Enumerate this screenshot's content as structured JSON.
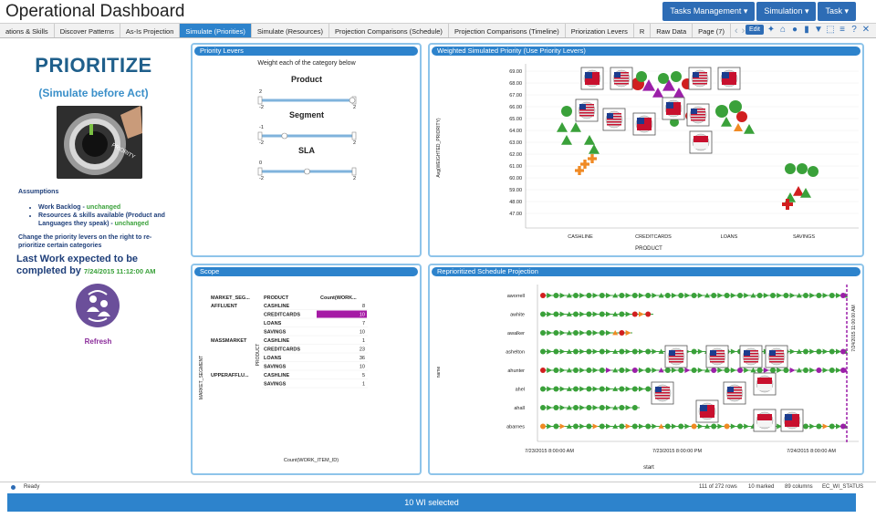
{
  "app": {
    "title": "Operational Dashboard"
  },
  "top_menu": [
    "Tasks Management ▾",
    "Simulation ▾",
    "Task ▾"
  ],
  "tabs": [
    "ations & Skills",
    "Discover Patterns",
    "As-Is Projection",
    "Simulate (Priorities)",
    "Simulate (Resources)",
    "Projection Comparisons (Schedule)",
    "Projection Comparisons (Timeline)",
    "Priorization Levers",
    "R",
    "Raw Data",
    "Page (7)"
  ],
  "active_tab": 3,
  "toolbar": {
    "edit_label": "Edit"
  },
  "left": {
    "title": "PRIORITIZE",
    "subtitle": "(Simulate before Act)",
    "knob_label": "PRIORITY",
    "assumptions_heading": "Assumptions",
    "assumption_1_label": "Work Backlog - ",
    "assumption_1_value": "unchanged",
    "assumption_2_label": "Resources & skills available (Product and Languages they speak) - ",
    "assumption_2_value": "unchanged",
    "change_note": "Change the priority levers on the right to re-prioritize certain categories",
    "last_work_label": "Last Work expected to be completed by",
    "last_work_date": "7/24/2015 11:12:00 AM",
    "refresh_label": "Refresh"
  },
  "levers": {
    "header": "Priority Levers",
    "instruction": "Weight each of the category below",
    "items": [
      {
        "name": "Product",
        "value": "2",
        "min": "-2",
        "max": "2",
        "level": 1.0
      },
      {
        "name": "Segment",
        "value": "-1",
        "min": "-2",
        "max": "2",
        "level": 0.25
      },
      {
        "name": "SLA",
        "value": "0",
        "min": "-2",
        "max": "2",
        "level": 0.5
      }
    ]
  },
  "scatter": {
    "header": "Weighted Simulated Priority (Use Priority Levers)",
    "ylabel": "Avg(WEIGHTED_PRIORITY)",
    "xlabel": "PRODUCT",
    "ticks_y": [
      "69.00",
      "68.00",
      "67.00",
      "66.00",
      "65.00",
      "64.00",
      "63.00",
      "62.00",
      "61.00",
      "60.00",
      "59.00",
      "48.00",
      "47.00"
    ],
    "categories": [
      "CASHLINE",
      "CREDITCARDS",
      "LOANS",
      "SAVINGS"
    ]
  },
  "scope": {
    "header": "Scope",
    "columns": [
      "MARKET_SEG...",
      "PRODUCT",
      "Count(WORK..."
    ],
    "row_axis_label": "MARKET_SEGMENT",
    "product_axis_label": "PRODUCT",
    "x_label": "Count(WORK_ITEM_ID)",
    "rows": [
      {
        "segment": "AFFLUENT",
        "product": "CASHLINE",
        "count": "8"
      },
      {
        "segment": "",
        "product": "CREDITCARDS",
        "count": "10"
      },
      {
        "segment": "",
        "product": "LOANS",
        "count": "7"
      },
      {
        "segment": "",
        "product": "SAVINGS",
        "count": "10"
      },
      {
        "segment": "MASSMARKET",
        "product": "CASHLINE",
        "count": "1"
      },
      {
        "segment": "",
        "product": "CREDITCARDS",
        "count": "23"
      },
      {
        "segment": "",
        "product": "LOANS",
        "count": "36"
      },
      {
        "segment": "",
        "product": "SAVINGS",
        "count": "10"
      },
      {
        "segment": "UPPERAFFLU...",
        "product": "CASHLINE",
        "count": "5"
      },
      {
        "segment": "",
        "product": "SAVINGS",
        "count": "1"
      }
    ],
    "highlighted_row": 1
  },
  "schedule": {
    "header": "Reprioritized Schedule Projection",
    "ylabel": "name",
    "xlabel": "start",
    "names": [
      "aworrell",
      "awhite",
      "awalker",
      "ashelton",
      "ahunter",
      "ahel",
      "ahall",
      "abarnes"
    ],
    "x_ticks": [
      "7/23/2015 8:00:00 AM",
      "7/23/2015 8:00:00 PM",
      "7/24/2015 8:00:00 AM"
    ],
    "marker_label": "7/24/2015 11:00:00 AM"
  },
  "status": {
    "ready": "Ready",
    "rows": "111 of 272 rows",
    "marked": "10 marked",
    "columns": "89 columns",
    "field": "EC_WI_STATUS"
  },
  "footer": {
    "selected_label": "10 WI selected"
  },
  "colors": {
    "accent": "#2d83cc",
    "green": "#3aa13a",
    "red": "#d11f1f",
    "purple": "#9b1fa8",
    "orange": "#f08a24"
  }
}
